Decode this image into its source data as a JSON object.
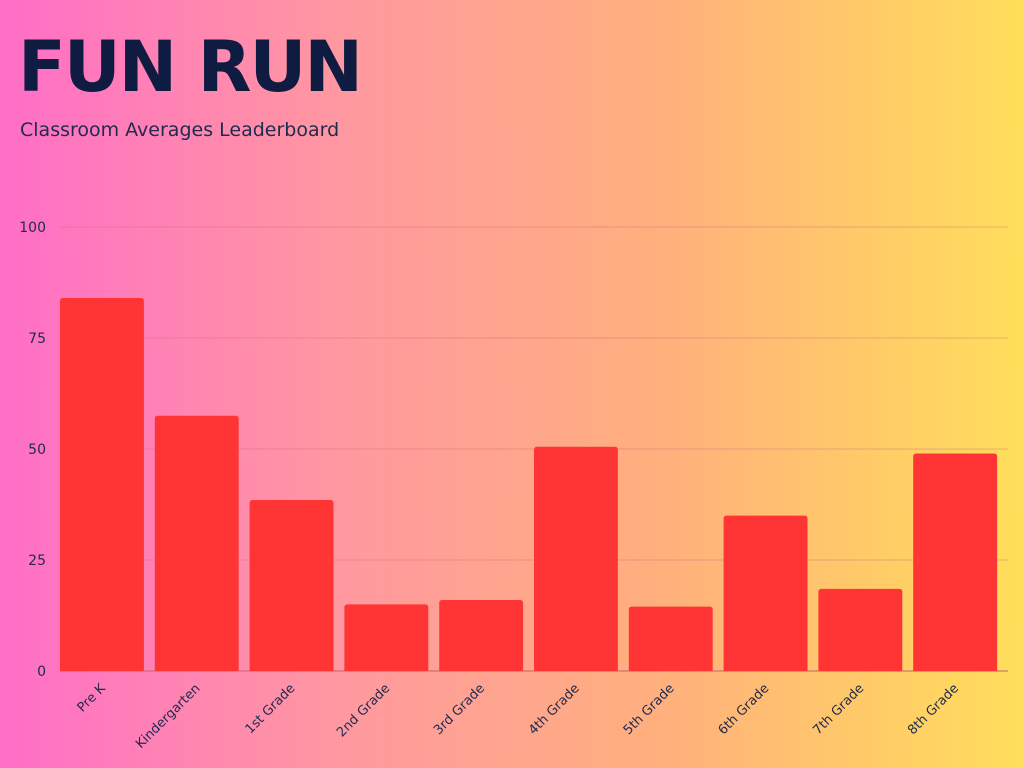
{
  "header": {
    "title": "FUN RUN",
    "subtitle": "Classroom Averages Leaderboard"
  },
  "colors": {
    "bar": "#ff3535",
    "grid": "#c9707a",
    "baseline": "#c96d74"
  },
  "chart_data": {
    "type": "bar",
    "title": "FUN RUN",
    "subtitle": "Classroom Averages Leaderboard",
    "xlabel": "",
    "ylabel": "",
    "ylim": [
      0,
      100
    ],
    "yticks": [
      0,
      25,
      50,
      75,
      100
    ],
    "grid": true,
    "categories": [
      "Pre K",
      "Kindergarten",
      "1st Grade",
      "2nd Grade",
      "3rd Grade",
      "4th Grade",
      "5th Grade",
      "6th Grade",
      "7th Grade",
      "8th Grade"
    ],
    "values": [
      84,
      57.5,
      38.5,
      15,
      16,
      50.5,
      14.5,
      35,
      18.5,
      49
    ]
  }
}
